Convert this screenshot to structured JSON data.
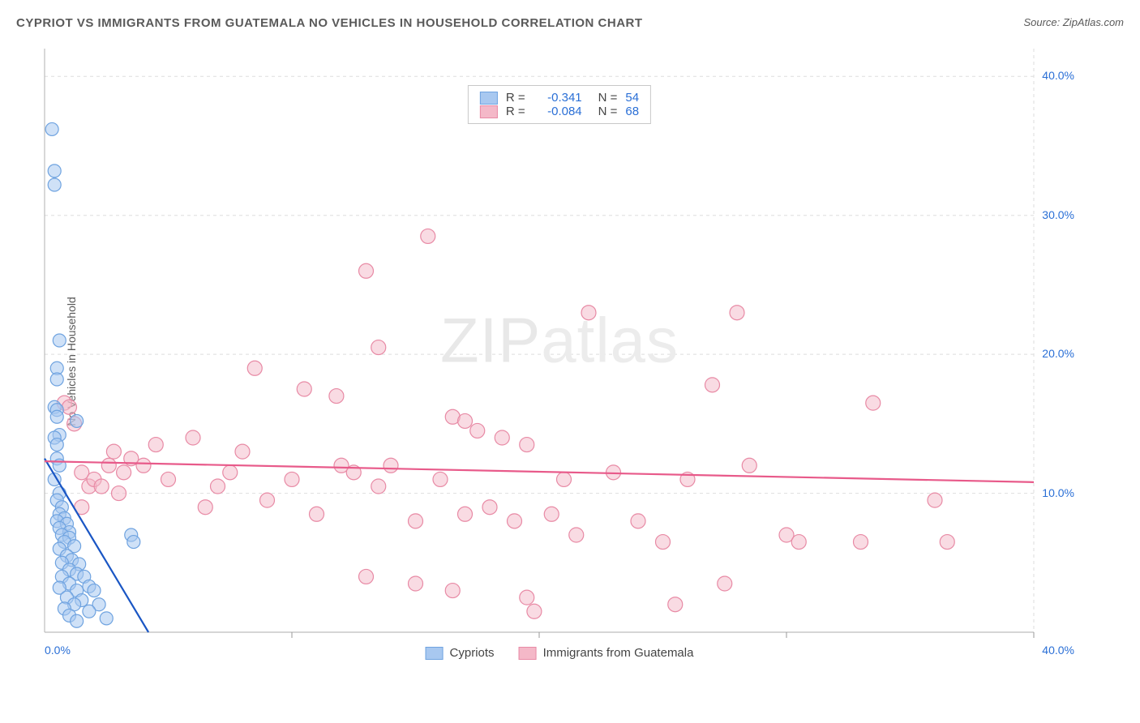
{
  "title": "CYPRIOT VS IMMIGRANTS FROM GUATEMALA NO VEHICLES IN HOUSEHOLD CORRELATION CHART",
  "source": "Source: ZipAtlas.com",
  "y_axis_label": "No Vehicles in Household",
  "watermark": {
    "bold": "ZIP",
    "light": "atlas"
  },
  "chart": {
    "type": "scatter",
    "xlim": [
      0,
      40
    ],
    "ylim": [
      0,
      42
    ],
    "x_ticks": [
      0,
      10,
      20,
      30,
      40
    ],
    "y_ticks": [
      10,
      20,
      30,
      40
    ],
    "tick_suffix": "%",
    "tick_format": "0.0",
    "background_color": "#ffffff",
    "grid_color": "#dedede",
    "grid_dash": "4,4",
    "axis_color": "#bdbdbd",
    "tick_mark_color": "#999999",
    "tick_label_color": "#2a6fd6",
    "series": [
      {
        "name": "Cypriots",
        "color_fill": "#a8c8f0",
        "color_stroke": "#6fa3e0",
        "fill_opacity": 0.55,
        "marker_radius": 8,
        "R": "-0.341",
        "N": "54",
        "regression": {
          "x1": 0,
          "y1": 12.5,
          "x2": 4.2,
          "y2": 0,
          "color": "#1a56c4",
          "width": 2.2
        },
        "points": [
          [
            0.3,
            36.2
          ],
          [
            0.4,
            33.2
          ],
          [
            0.4,
            32.2
          ],
          [
            0.6,
            21.0
          ],
          [
            0.5,
            19.0
          ],
          [
            0.5,
            18.2
          ],
          [
            0.4,
            16.2
          ],
          [
            0.5,
            16.0
          ],
          [
            0.5,
            15.5
          ],
          [
            0.6,
            14.2
          ],
          [
            0.4,
            14.0
          ],
          [
            0.5,
            13.5
          ],
          [
            0.5,
            12.5
          ],
          [
            0.6,
            12.0
          ],
          [
            0.4,
            11.0
          ],
          [
            0.6,
            10.0
          ],
          [
            0.5,
            9.5
          ],
          [
            0.7,
            9.0
          ],
          [
            0.6,
            8.5
          ],
          [
            0.8,
            8.2
          ],
          [
            0.5,
            8.0
          ],
          [
            0.9,
            7.8
          ],
          [
            0.6,
            7.5
          ],
          [
            1.0,
            7.2
          ],
          [
            0.7,
            7.0
          ],
          [
            1.0,
            6.8
          ],
          [
            0.8,
            6.5
          ],
          [
            1.2,
            6.2
          ],
          [
            0.6,
            6.0
          ],
          [
            0.9,
            5.5
          ],
          [
            1.1,
            5.2
          ],
          [
            0.7,
            5.0
          ],
          [
            1.4,
            4.9
          ],
          [
            1.0,
            4.5
          ],
          [
            1.3,
            4.2
          ],
          [
            0.7,
            4.0
          ],
          [
            1.6,
            4.0
          ],
          [
            1.0,
            3.5
          ],
          [
            1.8,
            3.3
          ],
          [
            0.6,
            3.2
          ],
          [
            1.3,
            3.0
          ],
          [
            2.0,
            3.0
          ],
          [
            0.9,
            2.5
          ],
          [
            1.5,
            2.3
          ],
          [
            1.2,
            2.0
          ],
          [
            2.2,
            2.0
          ],
          [
            0.8,
            1.7
          ],
          [
            1.8,
            1.5
          ],
          [
            1.0,
            1.2
          ],
          [
            2.5,
            1.0
          ],
          [
            1.3,
            0.8
          ],
          [
            1.3,
            15.2
          ],
          [
            3.5,
            7.0
          ],
          [
            3.6,
            6.5
          ]
        ]
      },
      {
        "name": "Immigrants from Guatemala",
        "color_fill": "#f4b8c8",
        "color_stroke": "#e88aa5",
        "fill_opacity": 0.5,
        "marker_radius": 9,
        "R": "-0.084",
        "N": "68",
        "regression": {
          "x1": 0,
          "y1": 12.3,
          "x2": 40,
          "y2": 10.8,
          "color": "#e85a8a",
          "width": 2.2
        },
        "points": [
          [
            15.5,
            28.5
          ],
          [
            13.0,
            26.0
          ],
          [
            28.0,
            23.0
          ],
          [
            0.8,
            16.5
          ],
          [
            1.0,
            16.2
          ],
          [
            8.5,
            19.0
          ],
          [
            13.5,
            20.5
          ],
          [
            10.5,
            17.5
          ],
          [
            11.8,
            17.0
          ],
          [
            16.5,
            15.5
          ],
          [
            17.0,
            15.2
          ],
          [
            18.5,
            14.0
          ],
          [
            19.5,
            13.5
          ],
          [
            27.0,
            17.8
          ],
          [
            33.5,
            16.5
          ],
          [
            3.5,
            12.5
          ],
          [
            4.5,
            13.5
          ],
          [
            5.0,
            11.0
          ],
          [
            6.0,
            14.0
          ],
          [
            7.0,
            10.5
          ],
          [
            7.5,
            11.5
          ],
          [
            8.0,
            13.0
          ],
          [
            9.0,
            9.5
          ],
          [
            10.0,
            11.0
          ],
          [
            11.0,
            8.5
          ],
          [
            12.0,
            12.0
          ],
          [
            12.5,
            11.5
          ],
          [
            13.5,
            10.5
          ],
          [
            14.0,
            12.0
          ],
          [
            15.0,
            8.0
          ],
          [
            16.0,
            11.0
          ],
          [
            17.0,
            8.5
          ],
          [
            17.5,
            14.5
          ],
          [
            18.0,
            9.0
          ],
          [
            19.0,
            8.0
          ],
          [
            19.5,
            2.5
          ],
          [
            19.8,
            1.5
          ],
          [
            20.5,
            8.5
          ],
          [
            21.0,
            11.0
          ],
          [
            21.5,
            7.0
          ],
          [
            22.0,
            23.0
          ],
          [
            23.0,
            11.5
          ],
          [
            24.0,
            8.0
          ],
          [
            25.0,
            6.5
          ],
          [
            25.5,
            2.0
          ],
          [
            26.0,
            11.0
          ],
          [
            27.5,
            3.5
          ],
          [
            28.5,
            12.0
          ],
          [
            30.0,
            7.0
          ],
          [
            30.5,
            6.5
          ],
          [
            33.0,
            6.5
          ],
          [
            36.5,
            6.5
          ],
          [
            36.0,
            9.5
          ],
          [
            1.2,
            15.0
          ],
          [
            1.5,
            11.5
          ],
          [
            1.8,
            10.5
          ],
          [
            2.0,
            11.0
          ],
          [
            2.3,
            10.5
          ],
          [
            2.6,
            12.0
          ],
          [
            3.0,
            10.0
          ],
          [
            3.2,
            11.5
          ],
          [
            1.5,
            9.0
          ],
          [
            13.0,
            4.0
          ],
          [
            15.0,
            3.5
          ],
          [
            16.5,
            3.0
          ],
          [
            6.5,
            9.0
          ],
          [
            4.0,
            12.0
          ],
          [
            2.8,
            13.0
          ]
        ]
      }
    ]
  },
  "legend_top_labels": {
    "R_label": "R =",
    "N_label": "N ="
  },
  "legend_bottom": [
    {
      "label": "Cypriots",
      "swatch_fill": "#a8c8f0",
      "swatch_stroke": "#6fa3e0"
    },
    {
      "label": "Immigrants from Guatemala",
      "swatch_fill": "#f4b8c8",
      "swatch_stroke": "#e88aa5"
    }
  ]
}
